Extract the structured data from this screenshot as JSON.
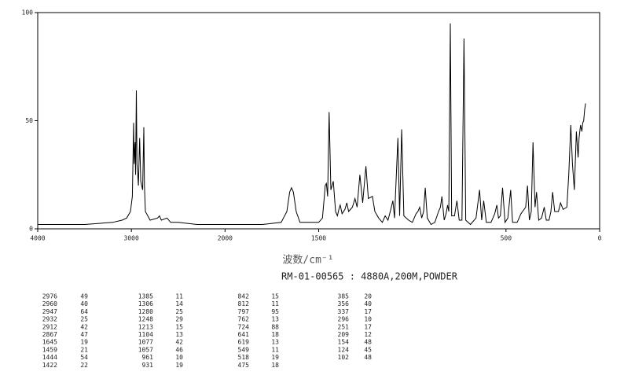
{
  "chart_data": {
    "type": "line",
    "x_label": "波数/cm⁻¹",
    "subtitle": "RM-01-00565 : 4880A,200M,POWDER",
    "xlim": [
      4000,
      0
    ],
    "x_break": 2000,
    "xticks": [
      4000,
      3000,
      2000,
      1500,
      500,
      0
    ],
    "ylim": [
      0,
      100
    ],
    "yticks": [
      0,
      50,
      100
    ],
    "color": "#000000",
    "grid": false,
    "x": [
      4000,
      3500,
      3200,
      3100,
      3050,
      3010,
      2990,
      2980,
      2976,
      2970,
      2960,
      2955,
      2947,
      2940,
      2932,
      2925,
      2912,
      2900,
      2880,
      2867,
      2860,
      2850,
      2800,
      2720,
      2700,
      2680,
      2620,
      2580,
      2500,
      2300,
      2000,
      1800,
      1700,
      1670,
      1655,
      1645,
      1635,
      1620,
      1600,
      1500,
      1480,
      1470,
      1465,
      1459,
      1452,
      1444,
      1435,
      1422,
      1410,
      1400,
      1392,
      1385,
      1375,
      1360,
      1350,
      1340,
      1320,
      1306,
      1295,
      1280,
      1265,
      1248,
      1235,
      1213,
      1200,
      1180,
      1160,
      1145,
      1130,
      1115,
      1104,
      1095,
      1077,
      1068,
      1057,
      1045,
      1020,
      1000,
      980,
      970,
      961,
      950,
      940,
      931,
      920,
      900,
      880,
      860,
      850,
      842,
      830,
      820,
      812,
      805,
      797,
      790,
      775,
      762,
      750,
      735,
      724,
      715,
      690,
      660,
      641,
      630,
      619,
      605,
      580,
      560,
      549,
      540,
      530,
      518,
      505,
      490,
      475,
      465,
      440,
      420,
      395,
      385,
      375,
      365,
      356,
      345,
      337,
      325,
      310,
      296,
      285,
      270,
      260,
      251,
      240,
      220,
      209,
      195,
      175,
      165,
      154,
      145,
      135,
      124,
      115,
      110,
      102,
      95,
      90,
      85,
      80,
      75
    ],
    "values": [
      2,
      2,
      3,
      4,
      5,
      8,
      15,
      40,
      49,
      30,
      40,
      25,
      64,
      30,
      25,
      20,
      42,
      22,
      18,
      47,
      20,
      8,
      4,
      5,
      6,
      4,
      5,
      3,
      3,
      2,
      2,
      2,
      3,
      8,
      17,
      19,
      17,
      8,
      3,
      3,
      5,
      15,
      20,
      21,
      15,
      54,
      18,
      22,
      8,
      6,
      9,
      11,
      7,
      9,
      12,
      8,
      10,
      14,
      10,
      25,
      12,
      29,
      14,
      15,
      8,
      5,
      3,
      6,
      4,
      9,
      13,
      5,
      42,
      6,
      46,
      6,
      4,
      3,
      7,
      8,
      10,
      5,
      8,
      19,
      5,
      2,
      3,
      8,
      10,
      15,
      4,
      7,
      11,
      8,
      95,
      6,
      6,
      13,
      4,
      4,
      88,
      4,
      2,
      5,
      18,
      4,
      13,
      3,
      3,
      7,
      11,
      5,
      6,
      19,
      3,
      5,
      18,
      3,
      3,
      7,
      10,
      20,
      4,
      8,
      40,
      10,
      17,
      4,
      5,
      10,
      4,
      4,
      8,
      17,
      8,
      8,
      12,
      9,
      10,
      25,
      48,
      30,
      18,
      45,
      33,
      42,
      48,
      45,
      49,
      50,
      55,
      58
    ]
  },
  "table": {
    "columns": [
      [
        [
          2976,
          49
        ],
        [
          2960,
          40
        ],
        [
          2947,
          64
        ],
        [
          2932,
          25
        ],
        [
          2912,
          42
        ],
        [
          2867,
          47
        ],
        [
          1645,
          19
        ],
        [
          1459,
          21
        ],
        [
          1444,
          54
        ],
        [
          1422,
          22
        ]
      ],
      [
        [
          1385,
          11
        ],
        [
          1306,
          14
        ],
        [
          1280,
          25
        ],
        [
          1248,
          29
        ],
        [
          1213,
          15
        ],
        [
          1104,
          13
        ],
        [
          1077,
          42
        ],
        [
          1057,
          46
        ],
        [
          961,
          10
        ],
        [
          931,
          19
        ]
      ],
      [
        [
          842,
          15
        ],
        [
          812,
          11
        ],
        [
          797,
          95
        ],
        [
          762,
          13
        ],
        [
          724,
          88
        ],
        [
          641,
          18
        ],
        [
          619,
          13
        ],
        [
          549,
          11
        ],
        [
          518,
          19
        ],
        [
          475,
          18
        ]
      ],
      [
        [
          385,
          20
        ],
        [
          356,
          40
        ],
        [
          337,
          17
        ],
        [
          296,
          10
        ],
        [
          251,
          17
        ],
        [
          209,
          12
        ],
        [
          154,
          48
        ],
        [
          124,
          45
        ],
        [
          102,
          48
        ]
      ]
    ]
  }
}
